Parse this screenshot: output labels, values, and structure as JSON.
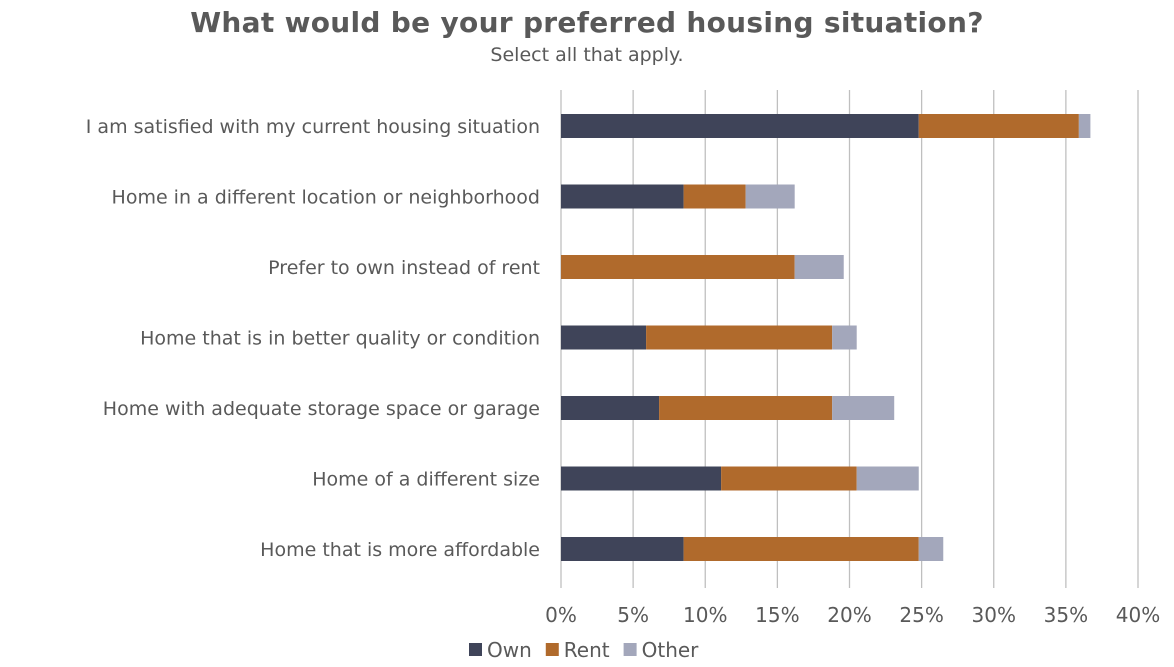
{
  "chart_data": {
    "type": "bar",
    "orientation": "horizontal",
    "stacked": true,
    "title": "What would be your preferred housing situation?",
    "subtitle": "Select all that apply.",
    "categories": [
      "I am satisfied with my current housing situation",
      "Home in a different location or neighborhood",
      "Prefer to own instead of rent",
      "Home that is in better quality or condition",
      "Home with adequate storage space or garage",
      "Home of a different size",
      "Home that is more affordable"
    ],
    "series": [
      {
        "name": "Own",
        "color": "#3f4459",
        "values": [
          24.8,
          8.5,
          0.0,
          5.9,
          6.8,
          11.1,
          8.5
        ]
      },
      {
        "name": "Rent",
        "color": "#b06a2c",
        "values": [
          11.1,
          4.3,
          16.2,
          12.9,
          12.0,
          9.4,
          16.3
        ]
      },
      {
        "name": "Other",
        "color": "#a3a7bb",
        "values": [
          0.8,
          3.4,
          3.4,
          1.7,
          4.3,
          4.3,
          1.7
        ]
      }
    ],
    "xlim": [
      0,
      40
    ],
    "ticks": [
      "0%",
      "5%",
      "10%",
      "15%",
      "20%",
      "25%",
      "30%",
      "35%",
      "40%"
    ],
    "tick_values": [
      0,
      5,
      10,
      15,
      20,
      25,
      30,
      35,
      40
    ],
    "xlabel": "",
    "ylabel": "",
    "grid": "vertical",
    "legend": "bottom"
  }
}
